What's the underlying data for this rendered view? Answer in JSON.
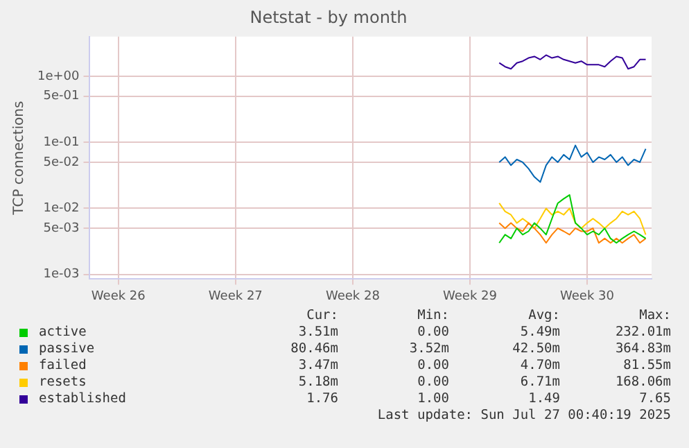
{
  "chart_data": {
    "type": "line",
    "title": "Netstat - by month",
    "ylabel": "TCP connections",
    "log": "y",
    "grid": true,
    "legend": "bottom",
    "marker": "none",
    "line_style": "solid",
    "categories": [
      null,
      null,
      null,
      null,
      null,
      "Week 26",
      null,
      null,
      null,
      null,
      null,
      null,
      null,
      null,
      null,
      null,
      null,
      null,
      null,
      null,
      null,
      null,
      null,
      null,
      null,
      "Week 27",
      null,
      null,
      null,
      null,
      null,
      null,
      null,
      null,
      null,
      null,
      null,
      null,
      null,
      null,
      null,
      null,
      null,
      null,
      null,
      "Week 28",
      null,
      null,
      null,
      null,
      null,
      null,
      null,
      null,
      null,
      null,
      null,
      null,
      null,
      null,
      null,
      null,
      null,
      null,
      null,
      "Week 29",
      null,
      null,
      null,
      null,
      null,
      null,
      null,
      null,
      null,
      null,
      null,
      null,
      null,
      null,
      null,
      null,
      null,
      null,
      null,
      "Week 30",
      null,
      null,
      null,
      null,
      null,
      null,
      null,
      null,
      null,
      null,
      null
    ],
    "ylim": [
      0.00085,
      4
    ],
    "yticks": [
      {
        "value": 0.001,
        "label": "1e-03"
      },
      {
        "value": 0.005,
        "label": "5e-03"
      },
      {
        "value": 0.01,
        "label": "1e-02"
      },
      {
        "value": 0.05,
        "label": "5e-02"
      },
      {
        "value": 0.1,
        "label": "1e-01"
      },
      {
        "value": 0.5,
        "label": "5e-01"
      },
      {
        "value": 1,
        "label": "1e+00"
      }
    ],
    "series": [
      {
        "name": "active",
        "color": "#00cc00",
        "values": [
          null,
          null,
          null,
          null,
          null,
          null,
          null,
          null,
          null,
          null,
          null,
          null,
          null,
          null,
          null,
          null,
          null,
          null,
          null,
          null,
          null,
          null,
          null,
          null,
          null,
          null,
          null,
          null,
          null,
          null,
          null,
          null,
          null,
          null,
          null,
          null,
          null,
          null,
          null,
          null,
          null,
          null,
          null,
          null,
          null,
          null,
          null,
          null,
          null,
          null,
          null,
          null,
          null,
          null,
          null,
          null,
          null,
          null,
          null,
          null,
          null,
          null,
          null,
          null,
          null,
          null,
          null,
          null,
          null,
          null,
          0.003,
          0.004,
          0.0035,
          0.005,
          0.004,
          0.0045,
          0.006,
          0.005,
          0.004,
          0.007,
          0.012,
          0.014,
          0.016,
          0.006,
          0.005,
          0.004,
          0.0045,
          0.004,
          0.005,
          0.0035,
          0.003,
          0.0035,
          0.004,
          0.0045,
          0.004,
          0.0035,
          null
        ]
      },
      {
        "name": "passive",
        "color": "#0066b3",
        "values": [
          null,
          null,
          null,
          null,
          null,
          null,
          null,
          null,
          null,
          null,
          null,
          null,
          null,
          null,
          null,
          null,
          null,
          null,
          null,
          null,
          null,
          null,
          null,
          null,
          null,
          null,
          null,
          null,
          null,
          null,
          null,
          null,
          null,
          null,
          null,
          null,
          null,
          null,
          null,
          null,
          null,
          null,
          null,
          null,
          null,
          null,
          null,
          null,
          null,
          null,
          null,
          null,
          null,
          null,
          null,
          null,
          null,
          null,
          null,
          null,
          null,
          null,
          null,
          null,
          null,
          null,
          null,
          null,
          null,
          null,
          0.05,
          0.06,
          0.045,
          0.055,
          0.05,
          0.04,
          0.03,
          0.025,
          0.045,
          0.06,
          0.05,
          0.065,
          0.055,
          0.09,
          0.06,
          0.07,
          0.05,
          0.06,
          0.055,
          0.065,
          0.05,
          0.06,
          0.045,
          0.055,
          0.05,
          0.08,
          null
        ]
      },
      {
        "name": "failed",
        "color": "#ff8000",
        "values": [
          null,
          null,
          null,
          null,
          null,
          null,
          null,
          null,
          null,
          null,
          null,
          null,
          null,
          null,
          null,
          null,
          null,
          null,
          null,
          null,
          null,
          null,
          null,
          null,
          null,
          null,
          null,
          null,
          null,
          null,
          null,
          null,
          null,
          null,
          null,
          null,
          null,
          null,
          null,
          null,
          null,
          null,
          null,
          null,
          null,
          null,
          null,
          null,
          null,
          null,
          null,
          null,
          null,
          null,
          null,
          null,
          null,
          null,
          null,
          null,
          null,
          null,
          null,
          null,
          null,
          null,
          null,
          null,
          null,
          null,
          0.006,
          0.005,
          0.006,
          0.005,
          0.0045,
          0.006,
          0.005,
          0.004,
          0.003,
          0.004,
          0.005,
          0.0045,
          0.004,
          0.005,
          0.0045,
          0.0045,
          0.005,
          0.003,
          0.0035,
          0.003,
          0.0035,
          0.003,
          0.0035,
          0.004,
          0.003,
          0.0035,
          null
        ]
      },
      {
        "name": "resets",
        "color": "#ffcc00",
        "values": [
          null,
          null,
          null,
          null,
          null,
          null,
          null,
          null,
          null,
          null,
          null,
          null,
          null,
          null,
          null,
          null,
          null,
          null,
          null,
          null,
          null,
          null,
          null,
          null,
          null,
          null,
          null,
          null,
          null,
          null,
          null,
          null,
          null,
          null,
          null,
          null,
          null,
          null,
          null,
          null,
          null,
          null,
          null,
          null,
          null,
          null,
          null,
          null,
          null,
          null,
          null,
          null,
          null,
          null,
          null,
          null,
          null,
          null,
          null,
          null,
          null,
          null,
          null,
          null,
          null,
          null,
          null,
          null,
          null,
          null,
          0.012,
          0.009,
          0.008,
          0.006,
          0.007,
          0.006,
          0.005,
          0.007,
          0.01,
          0.008,
          0.009,
          0.008,
          0.01,
          0.006,
          0.005,
          0.006,
          0.007,
          0.006,
          0.005,
          0.006,
          0.007,
          0.009,
          0.008,
          0.009,
          0.007,
          0.004,
          null
        ]
      },
      {
        "name": "established",
        "color": "#330099",
        "values": [
          null,
          null,
          null,
          null,
          null,
          null,
          null,
          null,
          null,
          null,
          null,
          null,
          null,
          null,
          null,
          null,
          null,
          null,
          null,
          null,
          null,
          null,
          null,
          null,
          null,
          null,
          null,
          null,
          null,
          null,
          null,
          null,
          null,
          null,
          null,
          null,
          null,
          null,
          null,
          null,
          null,
          null,
          null,
          null,
          null,
          null,
          null,
          null,
          null,
          null,
          null,
          null,
          null,
          null,
          null,
          null,
          null,
          null,
          null,
          null,
          null,
          null,
          null,
          null,
          null,
          null,
          null,
          null,
          null,
          null,
          1.6,
          1.4,
          1.3,
          1.6,
          1.7,
          1.9,
          2.0,
          1.8,
          2.1,
          1.9,
          2.0,
          1.8,
          1.7,
          1.6,
          1.7,
          1.5,
          1.5,
          1.5,
          1.4,
          1.7,
          2.0,
          1.9,
          1.3,
          1.4,
          1.8,
          1.8,
          null
        ]
      }
    ],
    "annotations": [
      "Cur:",
      "Min:",
      "Avg:",
      "Max:",
      "3.51m",
      "0.00",
      "5.49m",
      "232.01m",
      "80.46m",
      "3.52m",
      "42.50m",
      "364.83m",
      "3.47m",
      "0.00",
      "4.70m",
      "81.55m",
      "5.18m",
      "0.00",
      "6.71m",
      "168.06m",
      "1.76",
      "1.00",
      "1.49",
      "7.65",
      "Last update: Sun Jul 27 00:40:19 2025"
    ]
  }
}
